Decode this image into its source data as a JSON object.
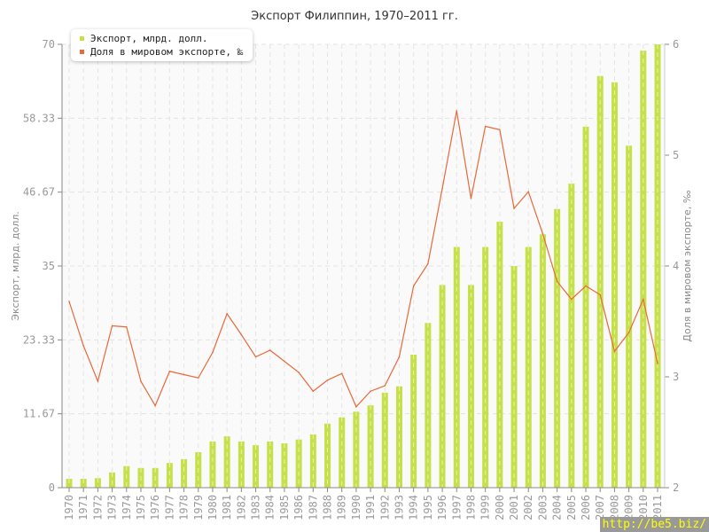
{
  "chart_data": {
    "type": "bar+line",
    "title": "Экспорт Филиппин, 1970–2011 гг.",
    "categories": [
      "1970",
      "1971",
      "1972",
      "1973",
      "1974",
      "1975",
      "1976",
      "1977",
      "1978",
      "1979",
      "1980",
      "1981",
      "1982",
      "1983",
      "1984",
      "1985",
      "1986",
      "1987",
      "1988",
      "1989",
      "1990",
      "1991",
      "1992",
      "1993",
      "1994",
      "1995",
      "1996",
      "1997",
      "1998",
      "1999",
      "2000",
      "2001",
      "2002",
      "2003",
      "2004",
      "2005",
      "2006",
      "2007",
      "2008",
      "2009",
      "2010",
      "2011"
    ],
    "series": [
      {
        "name": "Экспорт, млрд. долл.",
        "type": "bar",
        "axis": "left",
        "color": "#c5e04a",
        "values": [
          1.4,
          1.4,
          1.5,
          2.4,
          3.4,
          3.1,
          3.1,
          3.9,
          4.5,
          5.6,
          7.3,
          8.1,
          7.3,
          6.7,
          7.3,
          7.0,
          7.6,
          8.4,
          10.1,
          11.1,
          12.0,
          13.0,
          15.0,
          16.0,
          21.0,
          26.0,
          32.0,
          38.0,
          32.0,
          38.0,
          42.0,
          35.0,
          38.0,
          40.0,
          44.0,
          48.0,
          57.0,
          65.0,
          64.0,
          54.0,
          69.0,
          70.0
        ]
      },
      {
        "name": "Доля в мировом экспорте, ‰",
        "type": "line",
        "axis": "right",
        "color": "#e8693a",
        "values": [
          3.68,
          3.28,
          2.96,
          3.46,
          3.45,
          2.96,
          2.74,
          3.05,
          3.02,
          2.99,
          3.22,
          3.57,
          3.38,
          3.18,
          3.24,
          3.14,
          3.04,
          2.87,
          2.97,
          3.03,
          2.73,
          2.87,
          2.92,
          3.18,
          3.82,
          4.02,
          4.7,
          5.4,
          4.61,
          5.26,
          5.23,
          4.52,
          4.67,
          4.29,
          3.86,
          3.7,
          3.82,
          3.74,
          3.23,
          3.4,
          3.7,
          3.12
        ]
      }
    ],
    "ylabel": "Экспорт, млрд. долл.",
    "ylabel_right": "Доля в мировом экспорте, ‰",
    "ylim": [
      0,
      70
    ],
    "ylim_right": [
      2,
      6
    ],
    "yticks": [
      "0",
      "11.67",
      "23.33",
      "35",
      "46.67",
      "58.33",
      "70"
    ],
    "yticks_right": [
      "2",
      "3",
      "4",
      "5",
      "6"
    ],
    "grid": true,
    "legend_position": "top-left"
  },
  "watermark": "http://be5.biz/"
}
